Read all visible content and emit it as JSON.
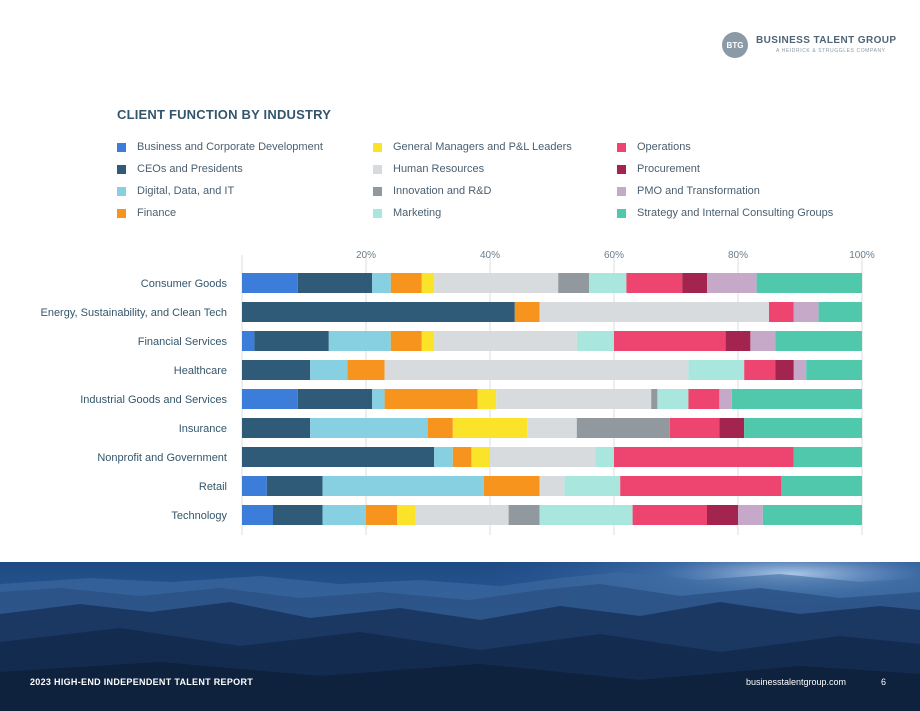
{
  "header": {
    "logo_mark": "BTG",
    "logo_name": "BUSINESS TALENT GROUP",
    "logo_tagline": "A HEIDRICK & STRUGGLES COMPANY"
  },
  "chart_data": {
    "type": "bar",
    "orientation": "horizontal",
    "stacked": true,
    "title": "CLIENT FUNCTION BY INDUSTRY",
    "xlim": [
      0,
      100
    ],
    "x_ticks": [
      "20%",
      "40%",
      "60%",
      "80%",
      "100%"
    ],
    "categories": [
      "Consumer Goods",
      "Energy, Sustainability, and Clean Tech",
      "Financial Services",
      "Healthcare",
      "Industrial Goods and Services",
      "Insurance",
      "Nonprofit and Government",
      "Retail",
      "Technology"
    ],
    "series": [
      {
        "name": "Business and Corporate Development",
        "color": "#3b7dd8",
        "values": [
          9,
          0,
          2,
          0,
          9,
          0,
          0,
          4,
          5
        ]
      },
      {
        "name": "CEOs and Presidents",
        "color": "#2f5b78",
        "values": [
          12,
          44,
          12,
          11,
          12,
          11,
          31,
          9,
          8
        ]
      },
      {
        "name": "Digital, Data, and IT",
        "color": "#86d0e1",
        "values": [
          3,
          0,
          10,
          6,
          2,
          19,
          3,
          26,
          7
        ]
      },
      {
        "name": "Finance",
        "color": "#f6941d",
        "values": [
          5,
          4,
          5,
          6,
          15,
          4,
          3,
          9,
          5
        ]
      },
      {
        "name": "General Managers and P&L Leaders",
        "color": "#fbe32a",
        "values": [
          2,
          0,
          2,
          0,
          3,
          12,
          3,
          0,
          3
        ]
      },
      {
        "name": "Human Resources",
        "color": "#d7dbdd",
        "values": [
          20,
          37,
          23,
          49,
          25,
          8,
          17,
          4,
          15
        ]
      },
      {
        "name": "Innovation and R&D",
        "color": "#92999e",
        "values": [
          5,
          0,
          0,
          0,
          1,
          15,
          0,
          0,
          5
        ]
      },
      {
        "name": "Marketing",
        "color": "#a9e6dd",
        "values": [
          6,
          0,
          6,
          9,
          5,
          0,
          3,
          9,
          15
        ]
      },
      {
        "name": "Operations",
        "color": "#ee4570",
        "values": [
          9,
          4,
          18,
          5,
          5,
          8,
          29,
          26,
          12
        ]
      },
      {
        "name": "Procurement",
        "color": "#a3244f",
        "values": [
          4,
          0,
          4,
          3,
          0,
          4,
          0,
          0,
          5
        ]
      },
      {
        "name": "PMO and Transformation",
        "color": "#c6a9c9",
        "values": [
          8,
          4,
          4,
          2,
          2,
          0,
          0,
          0,
          4
        ]
      },
      {
        "name": "Strategy and Internal Consulting Groups",
        "color": "#4fc8ac",
        "values": [
          17,
          7,
          14,
          9,
          21,
          19,
          11,
          13,
          16
        ]
      }
    ]
  },
  "footer": {
    "report_title": "2023 HIGH-END INDEPENDENT TALENT REPORT",
    "url": "businesstalentgroup.com",
    "page_number": "6"
  }
}
